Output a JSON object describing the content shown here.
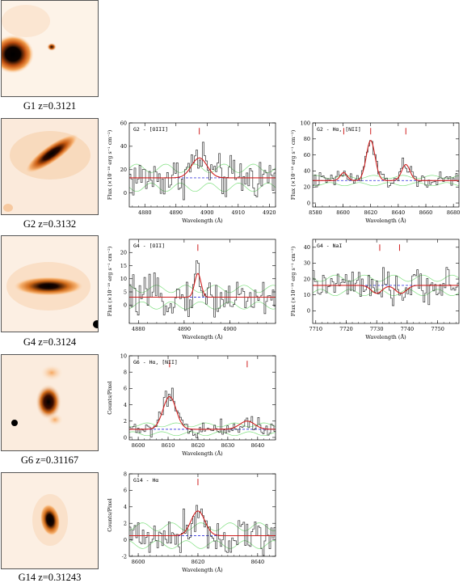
{
  "galaxies": [
    {
      "id": "G1",
      "caption": "G1  z=0.3121"
    },
    {
      "id": "G2",
      "caption": "G2  z=0.3132"
    },
    {
      "id": "G4",
      "caption": "G4  z=0.3124"
    },
    {
      "id": "G6",
      "caption": "G6  z=0.31167"
    },
    {
      "id": "G14",
      "caption": "G14  z=0.31243"
    }
  ],
  "colors": {
    "data": "#333333",
    "model": "#d02020",
    "error": "#80e080",
    "continuum": "#4a4ae0",
    "marker": "#d02020",
    "thumb_core": "#1a0500",
    "thumb_glow": "#f08020"
  },
  "chart_data": [
    {
      "type": "line",
      "id": "g2-oiii",
      "title": "G2 - [OIII]",
      "xlabel": "Wavelength (Å)",
      "ylabel": "Flux (×10⁻¹⁸ erg s⁻¹ cm⁻²)",
      "xlim": [
        4875,
        4922
      ],
      "ylim": [
        -12,
        60
      ],
      "xticks": [
        4880,
        4890,
        4900,
        4910,
        4920
      ],
      "yticks": [
        0,
        20,
        40,
        60
      ],
      "continuum": 13,
      "lines": [
        {
          "center": 4897.5,
          "amp": 17,
          "sigma": 2.5
        }
      ],
      "markers": [
        4897.5
      ],
      "data_scatter": 9
    },
    {
      "type": "line",
      "id": "g2-ha",
      "title": "G2 - Hα, [NII]",
      "xlabel": "Wavelength (Å)",
      "ylabel": "Flux (×10⁻¹⁸ erg s⁻¹ cm⁻²)",
      "xlim": [
        8578,
        8684
      ],
      "ylim": [
        -5,
        100
      ],
      "xticks": [
        8580,
        8600,
        8620,
        8640,
        8660,
        8680
      ],
      "yticks": [
        0,
        20,
        40,
        60,
        80,
        100
      ],
      "continuum": 28,
      "lines": [
        {
          "center": 8620,
          "amp": 50,
          "sigma": 3.2
        },
        {
          "center": 8600.5,
          "amp": 10,
          "sigma": 2.5
        },
        {
          "center": 8645.5,
          "amp": 20,
          "sigma": 3
        }
      ],
      "markers": [
        8600.5,
        8620,
        8645.5
      ],
      "data_scatter": 5
    },
    {
      "type": "line",
      "id": "g4-oiii",
      "title": "G4 - [OII]",
      "xlabel": "Wavelength (Å)",
      "ylabel": "Flux (×10⁻¹⁸ erg s⁻¹ cm⁻²)",
      "xlim": [
        4878,
        4910
      ],
      "ylim": [
        -7,
        25
      ],
      "xticks": [
        4880,
        4890,
        4900
      ],
      "yticks": [
        0,
        5,
        10,
        15,
        20
      ],
      "continuum": 3,
      "lines": [
        {
          "center": 4893,
          "amp": 9,
          "sigma": 0.7
        }
      ],
      "markers": [
        4893
      ],
      "data_scatter": 3.5
    },
    {
      "type": "line",
      "id": "g4-nai",
      "title": "G4 - NaI",
      "xlabel": "Wavelength (Å)",
      "ylabel": "Flux (×10⁻¹⁸ erg s⁻¹ cm⁻²)",
      "xlim": [
        7709,
        7757
      ],
      "ylim": [
        -8,
        45
      ],
      "xticks": [
        7710,
        7720,
        7730,
        7740,
        7750
      ],
      "yticks": [
        0,
        10,
        20,
        30,
        40
      ],
      "continuum": 16,
      "lines": [
        {
          "center": 7730,
          "amp": -5,
          "sigma": 1.8
        },
        {
          "center": 7738,
          "amp": -5,
          "sigma": 1.8
        }
      ],
      "markers": [
        7731,
        7737.5
      ],
      "data_scatter": 5
    },
    {
      "type": "line",
      "id": "g6-ha",
      "title": "G6 - Hα, [NII]",
      "xlabel": "Wavelength (Å)",
      "ylabel": "Counts/Pixel",
      "xlim": [
        8597,
        8646
      ],
      "ylim": [
        -0.3,
        10
      ],
      "xticks": [
        8600,
        8610,
        8620,
        8630,
        8640
      ],
      "yticks": [
        0,
        2,
        4,
        6,
        8,
        10
      ],
      "continuum": 1,
      "lines": [
        {
          "center": 8610.5,
          "amp": 4,
          "sigma": 2.2
        },
        {
          "center": 8636.5,
          "amp": 1,
          "sigma": 2.5
        }
      ],
      "markers": [
        8610.5,
        8636.5
      ],
      "data_scatter": 0.6
    },
    {
      "type": "line",
      "id": "g14-ha",
      "title": "G14 - Hα",
      "xlabel": "Wavelength (Å)",
      "ylabel": "Counts/Pixel",
      "xlim": [
        8597,
        8646
      ],
      "ylim": [
        -2,
        8
      ],
      "xticks": [
        8600,
        8620,
        8640
      ],
      "yticks": [
        -2,
        0,
        2,
        4,
        6,
        8
      ],
      "continuum": 0.5,
      "lines": [
        {
          "center": 8620,
          "amp": 3,
          "sigma": 2.3
        }
      ],
      "markers": [
        8620
      ],
      "data_scatter": 1.2
    }
  ]
}
